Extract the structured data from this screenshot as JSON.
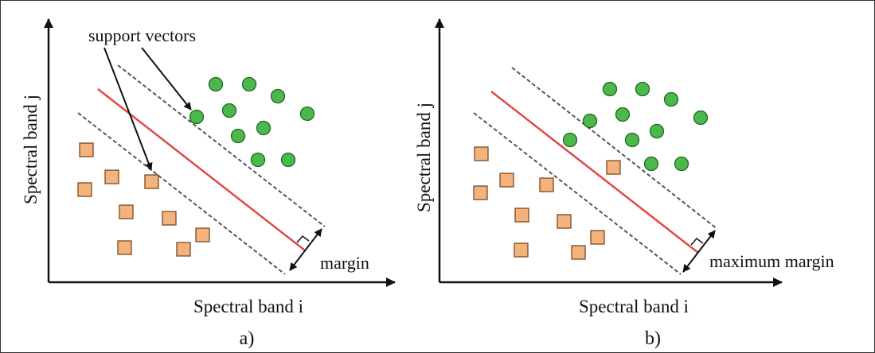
{
  "figure": {
    "panels": [
      {
        "label": "a)",
        "x_axis_label": "Spectral band i",
        "y_axis_label": "Spectral band j",
        "annotations": {
          "support_vectors": "support vectors",
          "margin": "margin"
        }
      },
      {
        "label": "b)",
        "x_axis_label": "Spectral band i",
        "y_axis_label": "Spectral band j",
        "annotations": {
          "margin": "maximum margin"
        }
      }
    ]
  },
  "colors": {
    "circle_fill": "#4cb84c",
    "circle_stroke": "#1f6b1f",
    "square_fill": "#f4b37c",
    "square_stroke": "#7a4a24",
    "hyperplane": "#e04848",
    "margin_line": "#555555",
    "axis": "#111111"
  }
}
